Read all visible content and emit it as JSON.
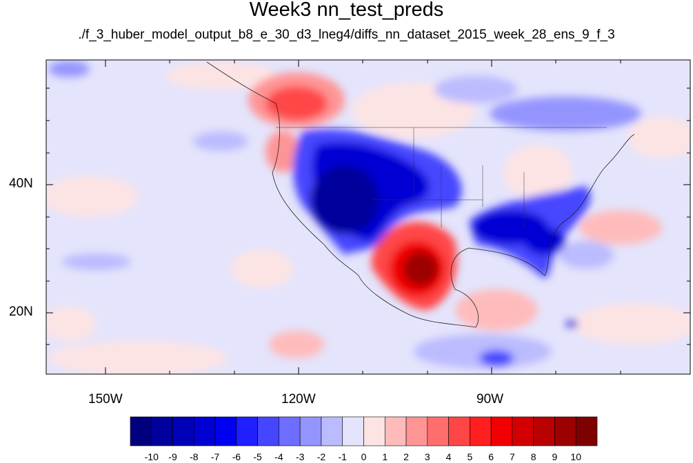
{
  "title": "Week3 nn_test_preds",
  "subtitle": "./f_3_huber_model_output_b8_e_30_d3_lneg4/diffs_nn_dataset_2015_week_28_ens_9_f_3",
  "map": {
    "lat_ticks": [
      {
        "label": "40N",
        "lat": 40
      },
      {
        "label": "20N",
        "lat": 20
      }
    ],
    "lon_ticks": [
      {
        "label": "150W",
        "lon": -150
      },
      {
        "label": "120W",
        "lon": -120
      },
      {
        "label": "90W",
        "lon": -90
      }
    ],
    "lon_range": [
      -159.5,
      -60
    ],
    "lat_range": [
      11,
      60
    ]
  },
  "colorbar": {
    "labels": [
      "-10",
      "-9",
      "-8",
      "-7",
      "-6",
      "-5",
      "-4",
      "-3",
      "-2",
      "-1",
      "0",
      "1",
      "2",
      "3",
      "4",
      "5",
      "6",
      "7",
      "8",
      "9",
      "10"
    ],
    "colors": [
      "#00007f",
      "#00009c",
      "#0000b8",
      "#0000d4",
      "#0000f0",
      "#1f1fff",
      "#4646ff",
      "#6d6dff",
      "#9494ff",
      "#bbbbff",
      "#e4e4fc",
      "#fde4e4",
      "#ffbbbb",
      "#ff9494",
      "#ff6d6d",
      "#ff4646",
      "#ff1f1f",
      "#f00000",
      "#d40000",
      "#b80000",
      "#9c0000",
      "#7f0000"
    ]
  }
}
